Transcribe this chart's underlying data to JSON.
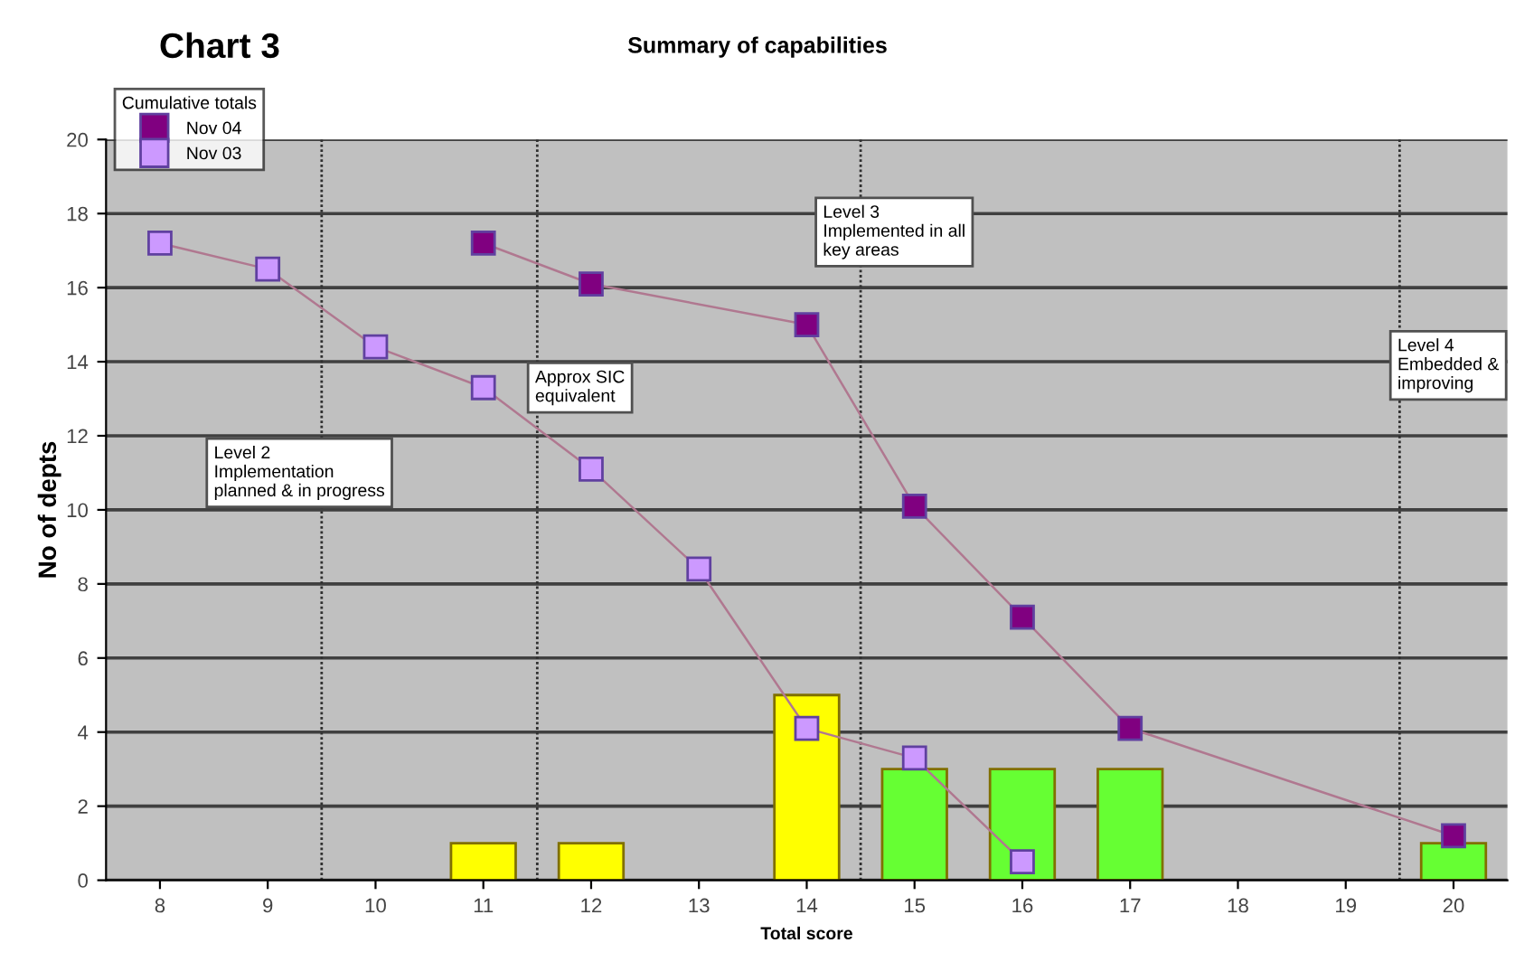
{
  "chart_data": {
    "type": "bar",
    "title": "Summary of capabilities",
    "subtitle": "Chart 3",
    "xlabel": "Total score",
    "ylabel": "No of depts",
    "xlim": [
      7.5,
      20.5
    ],
    "xticks": [
      8,
      9,
      10,
      11,
      12,
      13,
      14,
      15,
      16,
      17,
      18,
      19,
      20
    ],
    "ylim": [
      0,
      20
    ],
    "yticks": [
      0,
      2,
      4,
      6,
      8,
      10,
      12,
      14,
      16,
      18,
      20
    ],
    "grid": "y",
    "legend": "top left",
    "legend_title": "Cumulative totals",
    "series": [
      {
        "x": [
          11,
          12,
          14,
          15,
          16,
          17,
          20
        ],
        "values": [
          1,
          1,
          5,
          3,
          3,
          3,
          1
        ],
        "colors": [
          "#ffff00",
          "#ffff00",
          "#ffff00",
          "#66ff33",
          "#66ff33",
          "#66ff33",
          "#66ff33"
        ]
      },
      {
        "type": "line",
        "name": "Nov 04",
        "color": "#800080",
        "marker": "square",
        "x": [
          11,
          12,
          14,
          15,
          16,
          17,
          20
        ],
        "values": [
          17.2,
          16.1,
          15.0,
          10.1,
          7.1,
          4.1,
          1.2
        ]
      },
      {
        "type": "line",
        "name": "Nov 03",
        "color": "#cc99ff",
        "marker": "square",
        "x": [
          8,
          9,
          10,
          11,
          12,
          13,
          14,
          15,
          16
        ],
        "values": [
          17.2,
          16.5,
          14.4,
          13.3,
          11.1,
          8.4,
          4.1,
          3.3,
          0.5
        ]
      }
    ],
    "ref_lines": [
      {
        "axis": "x",
        "value": 9.5,
        "label": "Level 2\nImplementation\nplanned & in progress"
      },
      {
        "axis": "x",
        "value": 11.5,
        "label": "Approx SIC\nequivalent"
      },
      {
        "axis": "x",
        "value": 14.5,
        "label": "Level 3\nImplemented in all\nkey areas"
      },
      {
        "axis": "x",
        "value": 19.5,
        "label": "Level 4\nEmbedded &\nimproving"
      }
    ]
  }
}
